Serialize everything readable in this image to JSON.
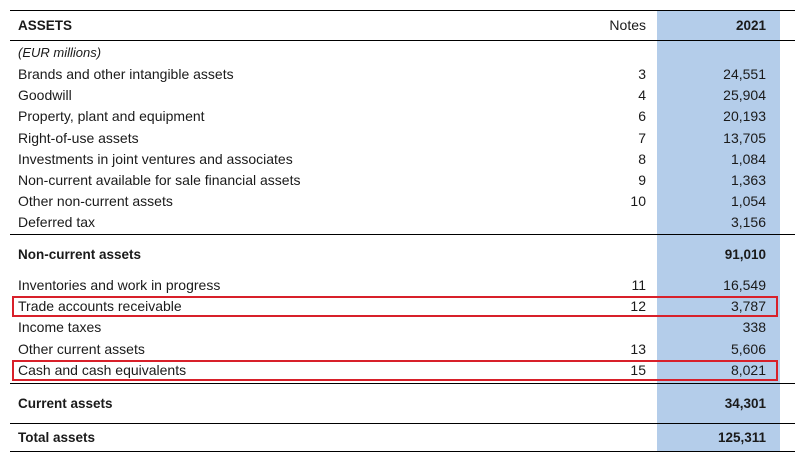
{
  "header": {
    "assets_label": "ASSETS",
    "notes_label": "Notes",
    "year_label": "2021"
  },
  "unit_label": "(EUR millions)",
  "noncurrent_rows": [
    {
      "label": "Brands and other intangible assets",
      "note": "3",
      "value": "24,551"
    },
    {
      "label": "Goodwill",
      "note": "4",
      "value": "25,904"
    },
    {
      "label": "Property, plant and equipment",
      "note": "6",
      "value": "20,193"
    },
    {
      "label": "Right-of-use assets",
      "note": "7",
      "value": "13,705"
    },
    {
      "label": "Investments in joint ventures and associates",
      "note": "8",
      "value": "1,084"
    },
    {
      "label": "Non-current available for sale financial assets",
      "note": "9",
      "value": "1,363"
    },
    {
      "label": "Other non-current assets",
      "note": "10",
      "value": "1,054"
    },
    {
      "label": "Deferred tax",
      "note": "",
      "value": "3,156"
    }
  ],
  "noncurrent_total": {
    "label": "Non-current assets",
    "value": "91,010"
  },
  "current_rows": [
    {
      "label": "Inventories and work in progress",
      "note": "11",
      "value": "16,549"
    },
    {
      "label": "Trade accounts receivable",
      "note": "12",
      "value": "3,787"
    },
    {
      "label": "Income taxes",
      "note": "",
      "value": "338"
    },
    {
      "label": "Other current assets",
      "note": "13",
      "value": "5,606"
    },
    {
      "label": "Cash and cash equivalents",
      "note": "15",
      "value": "8,021"
    }
  ],
  "current_total": {
    "label": "Current assets",
    "value": "34,301"
  },
  "grand_total": {
    "label": "Total assets",
    "value": "125,311"
  },
  "colors": {
    "highlight_column": "#b4cdea",
    "box_border": "#d8202a"
  }
}
